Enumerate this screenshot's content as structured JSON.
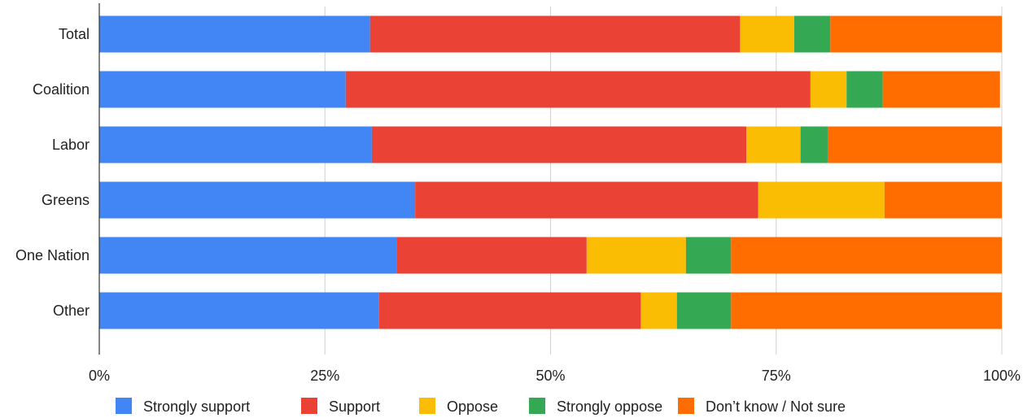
{
  "chart_data": {
    "type": "bar",
    "orientation": "horizontal",
    "stacked": "percent",
    "title": "",
    "xlabel": "",
    "ylabel": "",
    "xlim": [
      0,
      100
    ],
    "x_ticks": [
      0,
      25,
      50,
      75,
      100
    ],
    "x_tick_labels": [
      "0%",
      "25%",
      "50%",
      "75%",
      "100%"
    ],
    "grid": true,
    "legend_position": "bottom",
    "categories": [
      "Total",
      "Coalition",
      "Labor",
      "Greens",
      "One Nation",
      "Other"
    ],
    "series": [
      {
        "name": "Strongly support",
        "color": "#4285F4",
        "values": [
          30,
          27.3,
          30.2,
          35,
          33,
          31
        ]
      },
      {
        "name": "Support",
        "color": "#EA4335",
        "values": [
          41,
          51.5,
          41.5,
          38,
          21,
          29
        ]
      },
      {
        "name": "Oppose",
        "color": "#FBBC04",
        "values": [
          6,
          4,
          6,
          14,
          11,
          4
        ]
      },
      {
        "name": "Strongly oppose",
        "color": "#34A853",
        "values": [
          4,
          4,
          3,
          0,
          5,
          6
        ]
      },
      {
        "name": "Don’t know / Not sure",
        "color": "#FF6D01",
        "values": [
          19,
          13,
          19.3,
          13,
          30,
          30
        ]
      }
    ]
  }
}
